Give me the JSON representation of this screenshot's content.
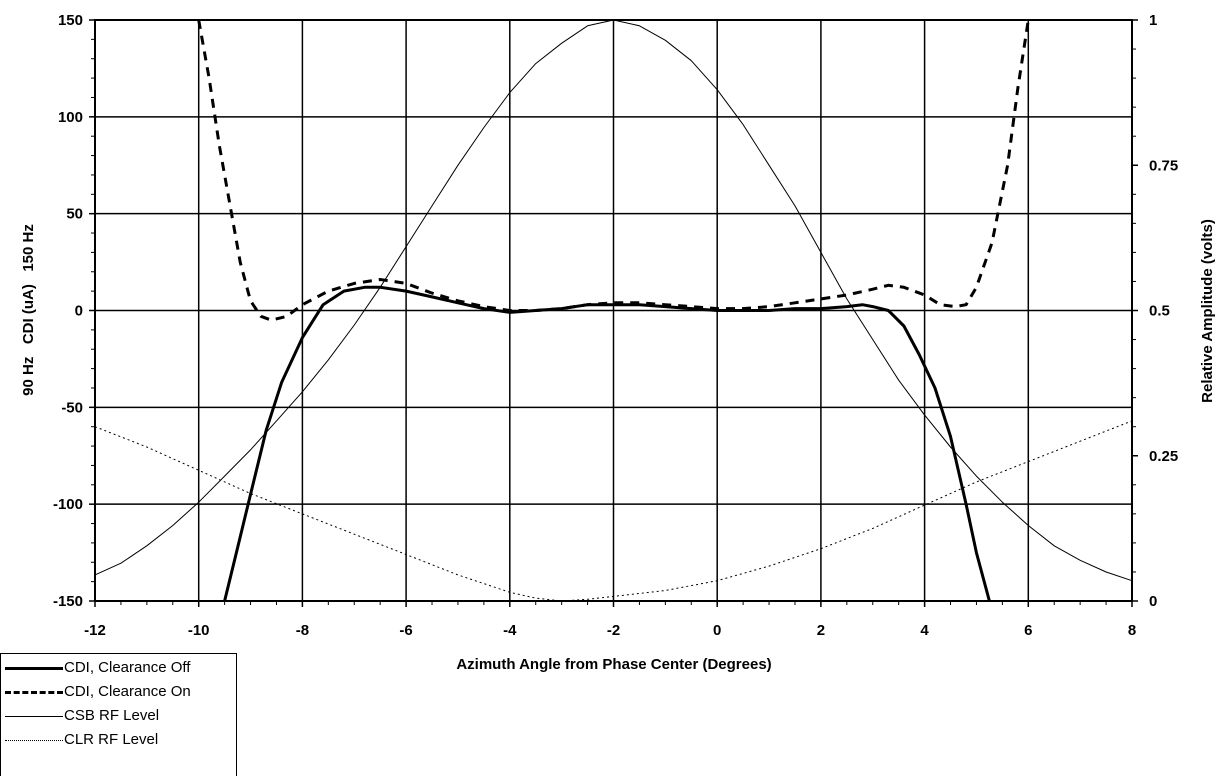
{
  "chart_data": {
    "type": "line",
    "title": "",
    "xlabel": "Azimuth Angle from Phase Center (Degrees)",
    "ylabel_left": "90 Hz   CDI (uA)   150 Hz",
    "ylabel_right": "Relative Amplitude (volts)",
    "xlim": [
      -12,
      8
    ],
    "ylim_left": [
      -150,
      150
    ],
    "ylim_right": [
      0,
      1
    ],
    "x_ticks": [
      "-12",
      "-10",
      "-8",
      "-6",
      "-4",
      "-2",
      "0",
      "2",
      "4",
      "6",
      "8"
    ],
    "y_ticks_left": [
      "150",
      "100",
      "50",
      "0",
      "-50",
      "-100",
      "-150"
    ],
    "y_ticks_right": [
      "1",
      "0.75",
      "0.5",
      "0.25",
      "0"
    ],
    "grid": true,
    "legend_position": "bottom-left",
    "series": [
      {
        "name": "CDI, Clearance Off",
        "axis": "left",
        "style": "solid-thick",
        "x": [
          -9.5,
          -9.3,
          -9.0,
          -8.7,
          -8.4,
          -8.0,
          -7.6,
          -7.2,
          -6.8,
          -6.5,
          -6.0,
          -5.5,
          -5.0,
          -4.5,
          -4.0,
          -3.5,
          -3.0,
          -2.5,
          -2.0,
          -1.5,
          -1.0,
          -0.5,
          0.0,
          0.5,
          1.0,
          1.5,
          2.0,
          2.5,
          2.8,
          3.0,
          3.3,
          3.6,
          3.9,
          4.2,
          4.5,
          4.8,
          5.0,
          5.25
        ],
        "values": [
          -150,
          -128,
          -95,
          -62,
          -37,
          -14,
          3,
          10,
          12,
          12,
          10,
          7,
          4,
          1,
          -1,
          0,
          1,
          3,
          3,
          3,
          2,
          1,
          0,
          0,
          0,
          1,
          1,
          2,
          3,
          2,
          0,
          -8,
          -23,
          -40,
          -65,
          -100,
          -125,
          -150
        ]
      },
      {
        "name": "CDI, Clearance On",
        "axis": "left",
        "style": "dashed-thick",
        "x": [
          -10.0,
          -9.8,
          -9.6,
          -9.4,
          -9.2,
          -9.0,
          -8.8,
          -8.6,
          -8.3,
          -8.0,
          -7.5,
          -7.0,
          -6.5,
          -6.0,
          -5.5,
          -5.0,
          -4.5,
          -4.0,
          -3.5,
          -3.0,
          -2.5,
          -2.0,
          -1.5,
          -1.0,
          -0.5,
          0.0,
          0.5,
          1.0,
          1.5,
          2.0,
          2.5,
          3.0,
          3.3,
          3.6,
          4.0,
          4.3,
          4.6,
          4.8,
          5.0,
          5.3,
          5.6,
          5.8,
          6.0
        ],
        "values": [
          150,
          120,
          85,
          55,
          25,
          5,
          -3,
          -5,
          -3,
          3,
          10,
          14,
          16,
          14,
          9,
          5,
          2,
          0,
          0,
          1,
          3,
          4,
          4,
          3,
          2,
          1,
          1,
          2,
          4,
          6,
          8,
          11,
          13,
          12,
          8,
          3,
          2,
          3,
          12,
          35,
          75,
          115,
          150
        ]
      },
      {
        "name": "CSB RF Level",
        "axis": "right",
        "style": "solid-thin",
        "x": [
          -12,
          -11.5,
          -11,
          -10.5,
          -10,
          -9.5,
          -9,
          -8.5,
          -8,
          -7.5,
          -7,
          -6.5,
          -6,
          -5.5,
          -5,
          -4.5,
          -4,
          -3.5,
          -3,
          -2.5,
          -2,
          -1.5,
          -1,
          -0.5,
          0,
          0.5,
          1,
          1.5,
          2,
          2.5,
          3,
          3.5,
          4,
          4.5,
          5,
          5.5,
          6,
          6.5,
          7,
          7.5,
          8
        ],
        "values": [
          0.045,
          0.065,
          0.095,
          0.13,
          0.17,
          0.215,
          0.26,
          0.31,
          0.36,
          0.415,
          0.475,
          0.54,
          0.61,
          0.68,
          0.75,
          0.815,
          0.875,
          0.925,
          0.96,
          0.99,
          1.0,
          0.99,
          0.965,
          0.93,
          0.88,
          0.82,
          0.75,
          0.68,
          0.6,
          0.52,
          0.45,
          0.38,
          0.32,
          0.265,
          0.215,
          0.17,
          0.13,
          0.095,
          0.07,
          0.05,
          0.035
        ]
      },
      {
        "name": "CLR RF Level",
        "axis": "right",
        "style": "dotted-thin",
        "x": [
          -12,
          -11,
          -10,
          -9,
          -8,
          -7,
          -6,
          -5,
          -4,
          -3.5,
          -3,
          -2.5,
          -2,
          -1,
          0,
          1,
          2,
          3,
          4,
          5,
          6,
          7,
          8
        ],
        "values": [
          0.3,
          0.265,
          0.225,
          0.185,
          0.15,
          0.115,
          0.08,
          0.045,
          0.015,
          0.005,
          0.0,
          0.003,
          0.008,
          0.018,
          0.035,
          0.06,
          0.09,
          0.125,
          0.165,
          0.205,
          0.24,
          0.275,
          0.31
        ]
      }
    ]
  }
}
